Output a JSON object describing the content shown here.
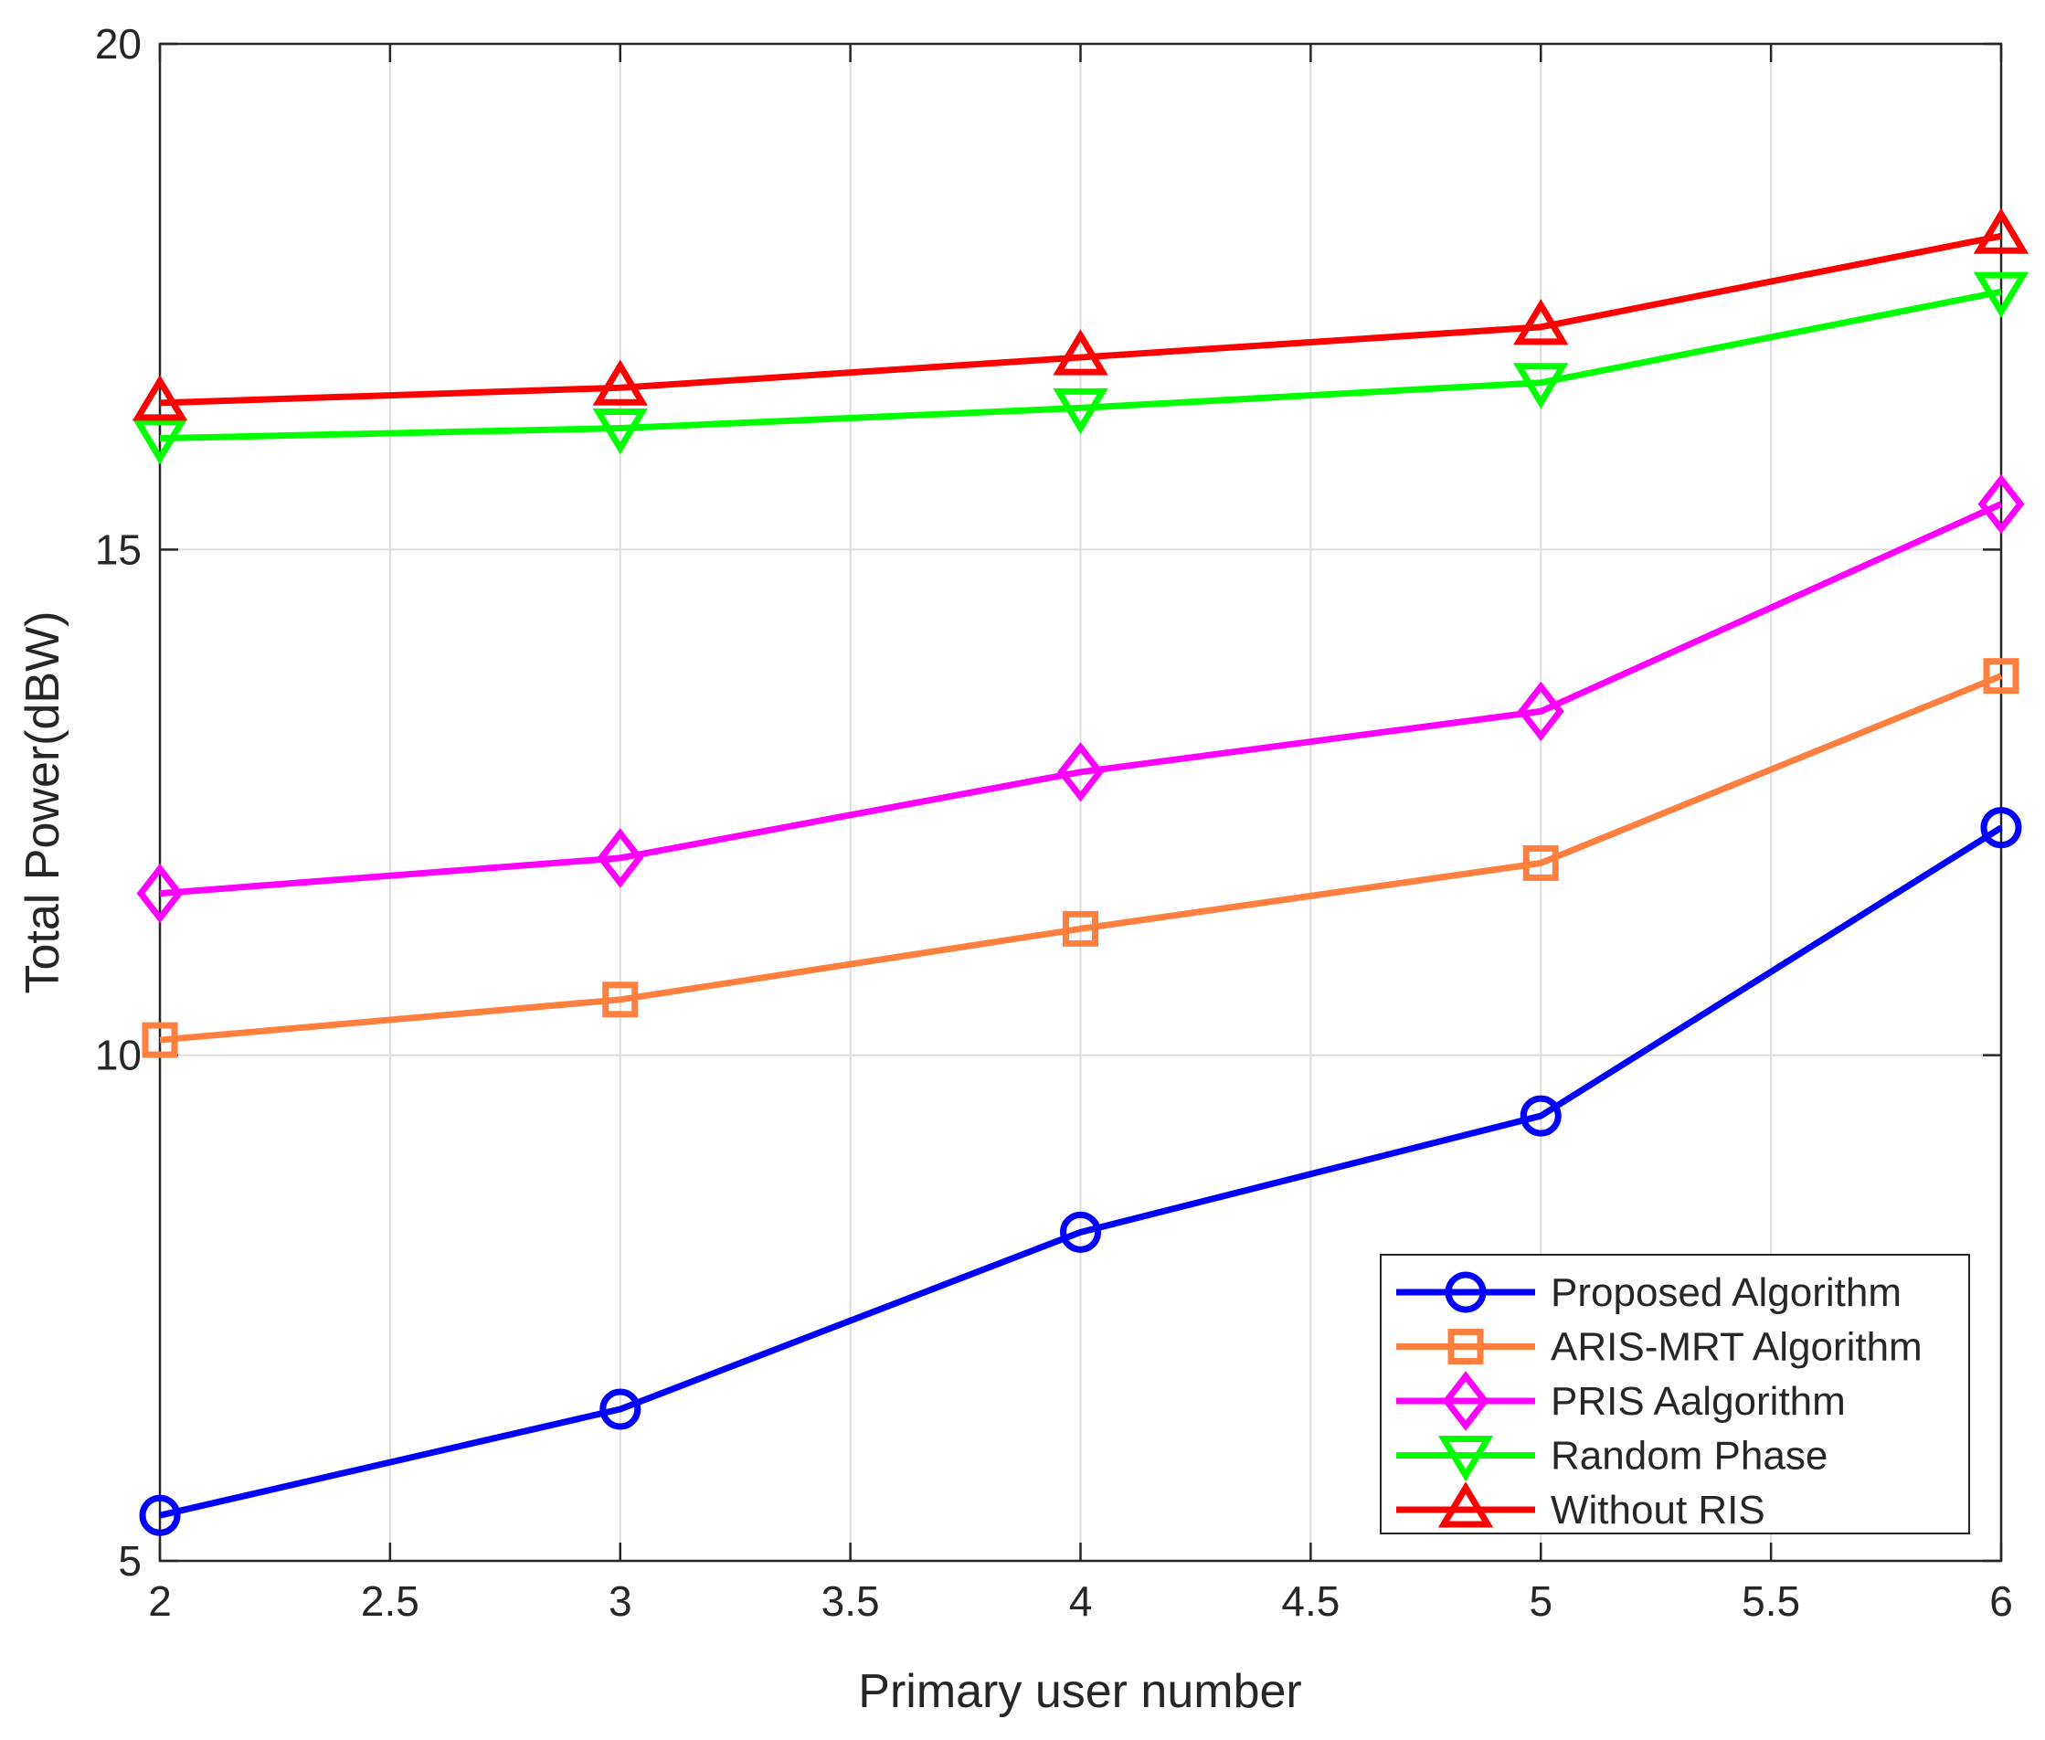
{
  "chart_data": {
    "type": "line",
    "title": "",
    "xlabel": "Primary user number",
    "ylabel": "Total Power(dBW)",
    "xlim": [
      2,
      6
    ],
    "ylim": [
      5,
      20
    ],
    "xticks": [
      2,
      2.5,
      3,
      3.5,
      4,
      4.5,
      5,
      5.5,
      6
    ],
    "xtick_labels": [
      "2",
      "2.5",
      "3",
      "3.5",
      "4",
      "4.5",
      "5",
      "5.5",
      "6"
    ],
    "yticks": [
      5,
      10,
      15,
      20
    ],
    "ytick_labels": [
      "5",
      "10",
      "15",
      "20"
    ],
    "grid": true,
    "legend_position": "bottom-right",
    "x": [
      2,
      3,
      4,
      5,
      6
    ],
    "series": [
      {
        "name": "Proposed Algorithm",
        "values": [
          5.45,
          6.5,
          8.25,
          9.4,
          12.25
        ],
        "color": "#0000ff",
        "marker": "circle"
      },
      {
        "name": "ARIS-MRT Algorithm",
        "values": [
          10.15,
          10.55,
          11.25,
          11.9,
          13.75
        ],
        "color": "#ff7f3f",
        "marker": "square"
      },
      {
        "name": "PRIS Aalgorithm",
        "values": [
          11.6,
          11.95,
          12.8,
          13.4,
          15.45
        ],
        "color": "#ff00ff",
        "marker": "diamond"
      },
      {
        "name": "Random Phase",
        "values": [
          16.1,
          16.2,
          16.4,
          16.65,
          17.55
        ],
        "color": "#00ff00",
        "marker": "triangle-down"
      },
      {
        "name": "Without RIS",
        "values": [
          16.45,
          16.6,
          16.9,
          17.2,
          18.1
        ],
        "color": "#ff0000",
        "marker": "triangle-up"
      }
    ]
  }
}
